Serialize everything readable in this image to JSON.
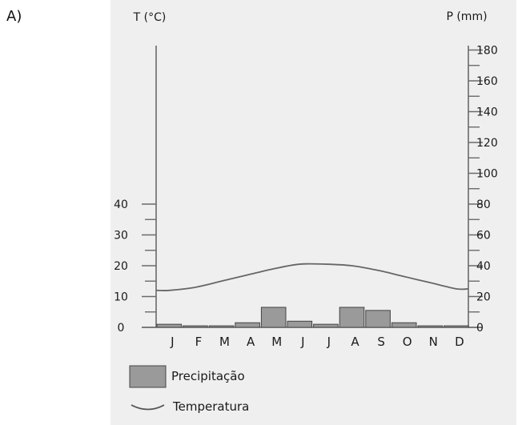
{
  "panel_label": "A)",
  "chart_data": {
    "type": "climograph",
    "title": "",
    "left_axis": {
      "label": "T (°C)",
      "ticks": [
        0,
        10,
        20,
        30,
        40
      ],
      "range": [
        0,
        40
      ]
    },
    "right_axis": {
      "label": "P (mm)",
      "ticks": [
        0,
        20,
        40,
        60,
        80,
        100,
        120,
        140,
        160,
        180
      ],
      "range": [
        0,
        180
      ]
    },
    "categories": [
      "J",
      "F",
      "M",
      "A",
      "M",
      "J",
      "J",
      "A",
      "S",
      "O",
      "N",
      "D"
    ],
    "series": [
      {
        "name": "Precipitação",
        "type": "bar",
        "axis": "right",
        "color": "#9a9a9a",
        "values": [
          2,
          1,
          1,
          3,
          13,
          4,
          2,
          13,
          11,
          3,
          1,
          1
        ]
      },
      {
        "name": "Temperatura",
        "type": "line",
        "axis": "left",
        "color": "#666666",
        "values": [
          12,
          13,
          15,
          17,
          19,
          20.5,
          20.5,
          20,
          18.5,
          16.5,
          14.5,
          12.5
        ]
      }
    ],
    "legend": [
      {
        "label": "Precipitação",
        "symbol": "bar"
      },
      {
        "label": "Temperatura",
        "symbol": "line"
      }
    ],
    "legend_placement": "bottom-left"
  }
}
